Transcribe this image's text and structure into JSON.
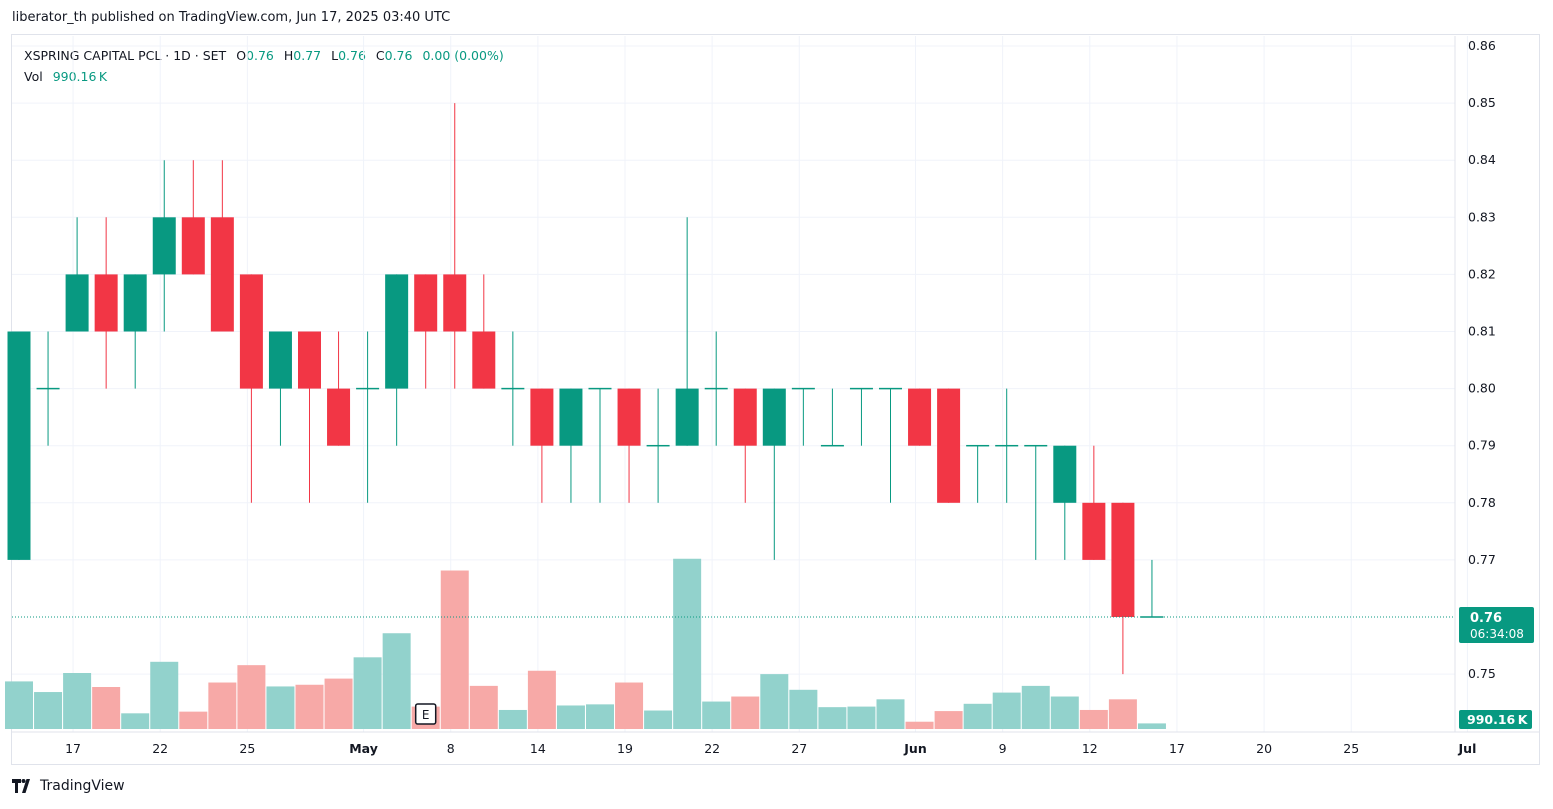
{
  "header": {
    "publisher": "liberator_th published on TradingView.com, Jun 17, 2025 03:40 UTC"
  },
  "legend": {
    "symbol": "XSPRING CAPITAL PCL · 1D · SET",
    "o_label": "O",
    "o_value": "0.76",
    "h_label": "H",
    "h_value": "0.77",
    "l_label": "L",
    "l_value": "0.76",
    "c_label": "C",
    "c_value": "0.76",
    "change": "0.00 (0.00%)",
    "vol_label": "Vol",
    "vol_value": "990.16 K"
  },
  "footer": {
    "logo_text": "TradingView"
  },
  "colors": {
    "up": "#089981",
    "down": "#f23645",
    "up_vol": "#92d2cc",
    "down_vol": "#f7a9a7"
  },
  "chart_data": {
    "type": "candlestick",
    "ylim": [
      0.74,
      0.86
    ],
    "y_ticks": [
      "0.86",
      "0.85",
      "0.84",
      "0.83",
      "0.82",
      "0.81",
      "0.80",
      "0.79",
      "0.78",
      "0.77",
      "0.75"
    ],
    "x_ticks": [
      {
        "label": "17",
        "slot": 1
      },
      {
        "label": "22",
        "slot": 4
      },
      {
        "label": "25",
        "slot": 7
      },
      {
        "label": "May",
        "slot": 11,
        "bold": true
      },
      {
        "label": "8",
        "slot": 14
      },
      {
        "label": "14",
        "slot": 17
      },
      {
        "label": "19",
        "slot": 20
      },
      {
        "label": "22",
        "slot": 23
      },
      {
        "label": "27",
        "slot": 26
      },
      {
        "label": "Jun",
        "slot": 30,
        "bold": true
      },
      {
        "label": "9",
        "slot": 33
      },
      {
        "label": "12",
        "slot": 36
      },
      {
        "label": "17",
        "slot": 39
      },
      {
        "label": "20",
        "slot": 42
      },
      {
        "label": "25",
        "slot": 45
      },
      {
        "label": "Jul",
        "slot": 49,
        "bold": true
      }
    ],
    "last_price": "0.76",
    "countdown": "06:34:08",
    "volume_label": "990.16 K",
    "earnings_marker": "E",
    "earnings_slot": 14,
    "candles": [
      {
        "o": 0.77,
        "h": 0.81,
        "l": 0.77,
        "c": 0.81,
        "v": 85
      },
      {
        "o": 0.8,
        "h": 0.81,
        "l": 0.79,
        "c": 0.8,
        "v": 66
      },
      {
        "o": 0.81,
        "h": 0.83,
        "l": 0.81,
        "c": 0.82,
        "v": 100
      },
      {
        "o": 0.82,
        "h": 0.83,
        "l": 0.8,
        "c": 0.81,
        "v": 75
      },
      {
        "o": 0.81,
        "h": 0.82,
        "l": 0.8,
        "c": 0.82,
        "v": 28
      },
      {
        "o": 0.82,
        "h": 0.84,
        "l": 0.81,
        "c": 0.83,
        "v": 120
      },
      {
        "o": 0.83,
        "h": 0.84,
        "l": 0.82,
        "c": 0.82,
        "v": 31
      },
      {
        "o": 0.83,
        "h": 0.84,
        "l": 0.81,
        "c": 0.81,
        "v": 83
      },
      {
        "o": 0.82,
        "h": 0.82,
        "l": 0.78,
        "c": 0.8,
        "v": 114
      },
      {
        "o": 0.8,
        "h": 0.81,
        "l": 0.79,
        "c": 0.81,
        "v": 76
      },
      {
        "o": 0.81,
        "h": 0.81,
        "l": 0.78,
        "c": 0.8,
        "v": 79
      },
      {
        "o": 0.8,
        "h": 0.81,
        "l": 0.79,
        "c": 0.79,
        "v": 90
      },
      {
        "o": 0.8,
        "h": 0.81,
        "l": 0.78,
        "c": 0.8,
        "v": 128
      },
      {
        "o": 0.8,
        "h": 0.82,
        "l": 0.79,
        "c": 0.82,
        "v": 171
      },
      {
        "o": 0.82,
        "h": 0.82,
        "l": 0.8,
        "c": 0.81,
        "v": 40
      },
      {
        "o": 0.82,
        "h": 0.85,
        "l": 0.8,
        "c": 0.81,
        "v": 283
      },
      {
        "o": 0.81,
        "h": 0.82,
        "l": 0.8,
        "c": 0.8,
        "v": 77
      },
      {
        "o": 0.8,
        "h": 0.81,
        "l": 0.79,
        "c": 0.8,
        "v": 34
      },
      {
        "o": 0.8,
        "h": 0.8,
        "l": 0.78,
        "c": 0.79,
        "v": 104
      },
      {
        "o": 0.79,
        "h": 0.8,
        "l": 0.78,
        "c": 0.8,
        "v": 42
      },
      {
        "o": 0.8,
        "h": 0.8,
        "l": 0.78,
        "c": 0.8,
        "v": 44
      },
      {
        "o": 0.8,
        "h": 0.8,
        "l": 0.78,
        "c": 0.79,
        "v": 83
      },
      {
        "o": 0.79,
        "h": 0.8,
        "l": 0.78,
        "c": 0.79,
        "v": 33
      },
      {
        "o": 0.79,
        "h": 0.83,
        "l": 0.79,
        "c": 0.8,
        "v": 304
      },
      {
        "o": 0.8,
        "h": 0.81,
        "l": 0.79,
        "c": 0.8,
        "v": 49
      },
      {
        "o": 0.8,
        "h": 0.8,
        "l": 0.78,
        "c": 0.79,
        "v": 58
      },
      {
        "o": 0.79,
        "h": 0.8,
        "l": 0.77,
        "c": 0.8,
        "v": 98
      },
      {
        "o": 0.8,
        "h": 0.8,
        "l": 0.79,
        "c": 0.8,
        "v": 70
      },
      {
        "o": 0.79,
        "h": 0.8,
        "l": 0.79,
        "c": 0.79,
        "v": 39
      },
      {
        "o": 0.8,
        "h": 0.8,
        "l": 0.79,
        "c": 0.8,
        "v": 40
      },
      {
        "o": 0.8,
        "h": 0.8,
        "l": 0.78,
        "c": 0.8,
        "v": 53
      },
      {
        "o": 0.8,
        "h": 0.8,
        "l": 0.79,
        "c": 0.79,
        "v": 13
      },
      {
        "o": 0.8,
        "h": 0.8,
        "l": 0.78,
        "c": 0.78,
        "v": 32
      },
      {
        "o": 0.79,
        "h": 0.79,
        "l": 0.78,
        "c": 0.79,
        "v": 45
      },
      {
        "o": 0.79,
        "h": 0.8,
        "l": 0.78,
        "c": 0.79,
        "v": 65
      },
      {
        "o": 0.79,
        "h": 0.79,
        "l": 0.77,
        "c": 0.79,
        "v": 77
      },
      {
        "o": 0.78,
        "h": 0.79,
        "l": 0.77,
        "c": 0.79,
        "v": 58
      },
      {
        "o": 0.78,
        "h": 0.79,
        "l": 0.77,
        "c": 0.77,
        "v": 34
      },
      {
        "o": 0.78,
        "h": 0.78,
        "l": 0.75,
        "c": 0.76,
        "v": 53
      },
      {
        "o": 0.76,
        "h": 0.77,
        "l": 0.76,
        "c": 0.76,
        "v": 10
      }
    ]
  }
}
